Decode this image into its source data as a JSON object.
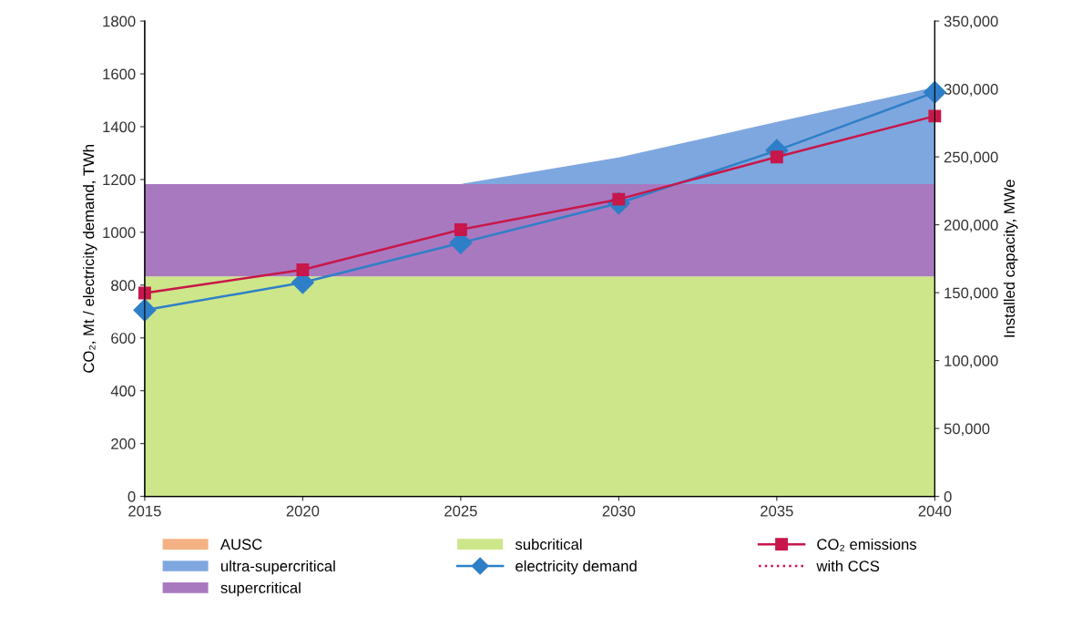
{
  "chart_data": {
    "type": "line",
    "ylabel": "CO₂, Mt / electricity demand, TWh",
    "y2label": "Installed capacity, MWe",
    "x": [
      2015,
      2020,
      2025,
      2030,
      2035,
      2040
    ],
    "xlim": [
      2015,
      2040
    ],
    "xticks": [
      2015,
      2020,
      2025,
      2030,
      2035,
      2040
    ],
    "ylim": [
      0,
      1800
    ],
    "yticks": [
      0,
      200,
      400,
      600,
      800,
      1000,
      1200,
      1400,
      1600,
      1800
    ],
    "y2lim": [
      0,
      350000
    ],
    "y2ticks": [
      {
        "value": 0,
        "label": "0"
      },
      {
        "value": 50000,
        "label": "50,000"
      },
      {
        "value": 100000,
        "label": "100,000"
      },
      {
        "value": 150000,
        "label": "150,000"
      },
      {
        "value": 200000,
        "label": "200,000"
      },
      {
        "value": 250000,
        "label": "250,000"
      },
      {
        "value": 300000,
        "label": "300,000"
      },
      {
        "value": 350000,
        "label": "350,000"
      }
    ],
    "stacked": true,
    "grid": false,
    "legend": "bottom",
    "series": [
      {
        "name": "subcritical",
        "type": "area",
        "axis": "y2",
        "color": "#cde68a",
        "values": [
          162000,
          162000,
          162000,
          162000,
          162000,
          162000
        ]
      },
      {
        "name": "supercritical",
        "type": "area",
        "axis": "y2",
        "color": "#a979c0",
        "values": [
          68000,
          68000,
          68000,
          68000,
          68000,
          68000
        ]
      },
      {
        "name": "ultra-supercritical",
        "type": "area",
        "axis": "y2",
        "color": "#7fa7df",
        "values": [
          0,
          0,
          0,
          19500,
          45800,
          71300
        ]
      },
      {
        "name": "AUSC",
        "type": "area",
        "axis": "y2",
        "color": "#f4b183",
        "values": [
          null,
          null,
          null,
          null,
          null,
          null
        ]
      },
      {
        "name": "electricity demand",
        "color": "#2f7fc8",
        "marker": "diamond",
        "line_style": "solid",
        "values": [
          705,
          810,
          960,
          1110,
          1310,
          1530
        ]
      },
      {
        "name": "CO₂ emissions",
        "color": "#c8174a",
        "marker": "square",
        "line_style": "solid",
        "values": [
          770,
          858,
          1010,
          1125,
          1285,
          1440
        ]
      },
      {
        "name": "with CCS",
        "color": "#c8174a",
        "marker": "none",
        "line_style": "dotted",
        "values": [
          null,
          null,
          null,
          null,
          null,
          null
        ]
      }
    ]
  }
}
